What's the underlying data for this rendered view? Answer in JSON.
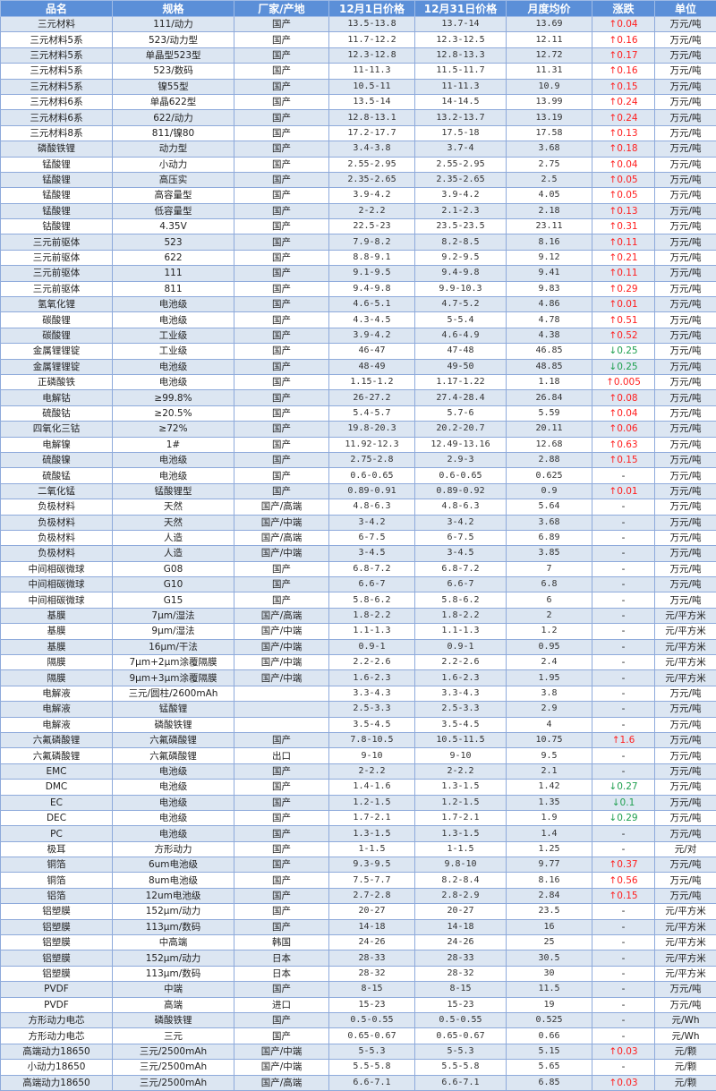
{
  "colors": {
    "header_bg": "#5b8fd8",
    "stripe": "#dce6f2",
    "up": "#ff2020",
    "down": "#20a050",
    "border": "#8eaadb"
  },
  "headers": [
    "品名",
    "规格",
    "厂家/产地",
    "12月1日价格",
    "12月31日价格",
    "月度均价",
    "涨跌",
    "单位"
  ],
  "rows": [
    [
      "三元材料",
      "111/动力",
      "国产",
      "13.5-13.8",
      "13.7-14",
      "13.69",
      "↑0.04",
      "万元/吨"
    ],
    [
      "三元材料5系",
      "523/动力型",
      "国产",
      "11.7-12.2",
      "12.3-12.5",
      "12.11",
      "↑0.16",
      "万元/吨"
    ],
    [
      "三元材料5系",
      "单晶型523型",
      "国产",
      "12.3-12.8",
      "12.8-13.3",
      "12.72",
      "↑0.17",
      "万元/吨"
    ],
    [
      "三元材料5系",
      "523/数码",
      "国产",
      "11-11.3",
      "11.5-11.7",
      "11.31",
      "↑0.16",
      "万元/吨"
    ],
    [
      "三元材料5系",
      "镍55型",
      "国产",
      "10.5-11",
      "11-11.3",
      "10.9",
      "↑0.15",
      "万元/吨"
    ],
    [
      "三元材料6系",
      "单晶622型",
      "国产",
      "13.5-14",
      "14-14.5",
      "13.99",
      "↑0.24",
      "万元/吨"
    ],
    [
      "三元材料6系",
      "622/动力",
      "国产",
      "12.8-13.1",
      "13.2-13.7",
      "13.19",
      "↑0.24",
      "万元/吨"
    ],
    [
      "三元材料8系",
      "811/镍80",
      "国产",
      "17.2-17.7",
      "17.5-18",
      "17.58",
      "↑0.13",
      "万元/吨"
    ],
    [
      "磷酸铁锂",
      "动力型",
      "国产",
      "3.4-3.8",
      "3.7-4",
      "3.68",
      "↑0.18",
      "万元/吨"
    ],
    [
      "锰酸锂",
      "小动力",
      "国产",
      "2.55-2.95",
      "2.55-2.95",
      "2.75",
      "↑0.04",
      "万元/吨"
    ],
    [
      "锰酸锂",
      "高压实",
      "国产",
      "2.35-2.65",
      "2.35-2.65",
      "2.5",
      "↑0.05",
      "万元/吨"
    ],
    [
      "锰酸锂",
      "高容量型",
      "国产",
      "3.9-4.2",
      "3.9-4.2",
      "4.05",
      "↑0.05",
      "万元/吨"
    ],
    [
      "锰酸锂",
      "低容量型",
      "国产",
      "2-2.2",
      "2.1-2.3",
      "2.18",
      "↑0.13",
      "万元/吨"
    ],
    [
      "钴酸锂",
      "4.35V",
      "国产",
      "22.5-23",
      "23.5-23.5",
      "23.11",
      "↑0.31",
      "万元/吨"
    ],
    [
      "三元前驱体",
      "523",
      "国产",
      "7.9-8.2",
      "8.2-8.5",
      "8.16",
      "↑0.11",
      "万元/吨"
    ],
    [
      "三元前驱体",
      "622",
      "国产",
      "8.8-9.1",
      "9.2-9.5",
      "9.12",
      "↑0.21",
      "万元/吨"
    ],
    [
      "三元前驱体",
      "111",
      "国产",
      "9.1-9.5",
      "9.4-9.8",
      "9.41",
      "↑0.11",
      "万元/吨"
    ],
    [
      "三元前驱体",
      "811",
      "国产",
      "9.4-9.8",
      "9.9-10.3",
      "9.83",
      "↑0.29",
      "万元/吨"
    ],
    [
      "氢氧化锂",
      "电池级",
      "国产",
      "4.6-5.1",
      "4.7-5.2",
      "4.86",
      "↑0.01",
      "万元/吨"
    ],
    [
      "碳酸锂",
      "电池级",
      "国产",
      "4.3-4.5",
      "5-5.4",
      "4.78",
      "↑0.51",
      "万元/吨"
    ],
    [
      "碳酸锂",
      "工业级",
      "国产",
      "3.9-4.2",
      "4.6-4.9",
      "4.38",
      "↑0.52",
      "万元/吨"
    ],
    [
      "金属锂锂锭",
      "工业级",
      "国产",
      "46-47",
      "47-48",
      "46.85",
      "↓0.25",
      "万元/吨"
    ],
    [
      "金属锂锂锭",
      "电池级",
      "国产",
      "48-49",
      "49-50",
      "48.85",
      "↓0.25",
      "万元/吨"
    ],
    [
      "正磷酸铁",
      "电池级",
      "国产",
      "1.15-1.2",
      "1.17-1.22",
      "1.18",
      "↑0.005",
      "万元/吨"
    ],
    [
      "电解钴",
      "≥99.8%",
      "国产",
      "26-27.2",
      "27.4-28.4",
      "26.84",
      "↑0.08",
      "万元/吨"
    ],
    [
      "硫酸钴",
      "≥20.5%",
      "国产",
      "5.4-5.7",
      "5.7-6",
      "5.59",
      "↑0.04",
      "万元/吨"
    ],
    [
      "四氧化三钴",
      "≥72%",
      "国产",
      "19.8-20.3",
      "20.2-20.7",
      "20.11",
      "↑0.06",
      "万元/吨"
    ],
    [
      "电解镍",
      "1#",
      "国产",
      "11.92-12.3",
      "12.49-13.16",
      "12.68",
      "↑0.63",
      "万元/吨"
    ],
    [
      "硫酸镍",
      "电池级",
      "国产",
      "2.75-2.8",
      "2.9-3",
      "2.88",
      "↑0.15",
      "万元/吨"
    ],
    [
      "硫酸锰",
      "电池级",
      "国产",
      "0.6-0.65",
      "0.6-0.65",
      "0.625",
      "-",
      "万元/吨"
    ],
    [
      "二氧化锰",
      "锰酸锂型",
      "国产",
      "0.89-0.91",
      "0.89-0.92",
      "0.9",
      "↑0.01",
      "万元/吨"
    ],
    [
      "负极材料",
      "天然",
      "国产/高端",
      "4.8-6.3",
      "4.8-6.3",
      "5.64",
      "-",
      "万元/吨"
    ],
    [
      "负极材料",
      "天然",
      "国产/中端",
      "3-4.2",
      "3-4.2",
      "3.68",
      "-",
      "万元/吨"
    ],
    [
      "负极材料",
      "人造",
      "国产/高端",
      "6-7.5",
      "6-7.5",
      "6.89",
      "-",
      "万元/吨"
    ],
    [
      "负极材料",
      "人造",
      "国产/中端",
      "3-4.5",
      "3-4.5",
      "3.85",
      "-",
      "万元/吨"
    ],
    [
      "中间相碳微球",
      "G08",
      "国产",
      "6.8-7.2",
      "6.8-7.2",
      "7",
      "-",
      "万元/吨"
    ],
    [
      "中间相碳微球",
      "G10",
      "国产",
      "6.6-7",
      "6.6-7",
      "6.8",
      "-",
      "万元/吨"
    ],
    [
      "中间相碳微球",
      "G15",
      "国产",
      "5.8-6.2",
      "5.8-6.2",
      "6",
      "-",
      "万元/吨"
    ],
    [
      "基膜",
      "7μm/湿法",
      "国产/高端",
      "1.8-2.2",
      "1.8-2.2",
      "2",
      "-",
      "元/平方米"
    ],
    [
      "基膜",
      "9μm/湿法",
      "国产/中端",
      "1.1-1.3",
      "1.1-1.3",
      "1.2",
      "-",
      "元/平方米"
    ],
    [
      "基膜",
      "16μm/干法",
      "国产/中端",
      "0.9-1",
      "0.9-1",
      "0.95",
      "-",
      "元/平方米"
    ],
    [
      "隔膜",
      "7μm+2μm涂覆隔膜",
      "国产/中端",
      "2.2-2.6",
      "2.2-2.6",
      "2.4",
      "-",
      "元/平方米"
    ],
    [
      "隔膜",
      "9μm+3μm涂覆隔膜",
      "国产/中端",
      "1.6-2.3",
      "1.6-2.3",
      "1.95",
      "-",
      "元/平方米"
    ],
    [
      "电解液",
      "三元/圆柱/2600mAh",
      "",
      "3.3-4.3",
      "3.3-4.3",
      "3.8",
      "-",
      "万元/吨"
    ],
    [
      "电解液",
      "锰酸锂",
      "",
      "2.5-3.3",
      "2.5-3.3",
      "2.9",
      "-",
      "万元/吨"
    ],
    [
      "电解液",
      "磷酸铁锂",
      "",
      "3.5-4.5",
      "3.5-4.5",
      "4",
      "-",
      "万元/吨"
    ],
    [
      "六氟磷酸锂",
      "六氟磷酸锂",
      "国产",
      "7.8-10.5",
      "10.5-11.5",
      "10.75",
      "↑1.6",
      "万元/吨"
    ],
    [
      "六氟磷酸锂",
      "六氟磷酸锂",
      "出口",
      "9-10",
      "9-10",
      "9.5",
      "-",
      "万元/吨"
    ],
    [
      "EMC",
      "电池级",
      "国产",
      "2-2.2",
      "2-2.2",
      "2.1",
      "-",
      "万元/吨"
    ],
    [
      "DMC",
      "电池级",
      "国产",
      "1.4-1.6",
      "1.3-1.5",
      "1.42",
      "↓0.27",
      "万元/吨"
    ],
    [
      "EC",
      "电池级",
      "国产",
      "1.2-1.5",
      "1.2-1.5",
      "1.35",
      "↓0.1",
      "万元/吨"
    ],
    [
      "DEC",
      "电池级",
      "国产",
      "1.7-2.1",
      "1.7-2.1",
      "1.9",
      "↓0.29",
      "万元/吨"
    ],
    [
      "PC",
      "电池级",
      "国产",
      "1.3-1.5",
      "1.3-1.5",
      "1.4",
      "-",
      "万元/吨"
    ],
    [
      "极耳",
      "方形动力",
      "国产",
      "1-1.5",
      "1-1.5",
      "1.25",
      "-",
      "元/对"
    ],
    [
      "铜箔",
      "6um电池级",
      "国产",
      "9.3-9.5",
      "9.8-10",
      "9.77",
      "↑0.37",
      "万元/吨"
    ],
    [
      "铜箔",
      "8um电池级",
      "国产",
      "7.5-7.7",
      "8.2-8.4",
      "8.16",
      "↑0.56",
      "万元/吨"
    ],
    [
      "铝箔",
      "12um电池级",
      "国产",
      "2.7-2.8",
      "2.8-2.9",
      "2.84",
      "↑0.15",
      "万元/吨"
    ],
    [
      "铝塑膜",
      "152μm/动力",
      "国产",
      "20-27",
      "20-27",
      "23.5",
      "-",
      "元/平方米"
    ],
    [
      "铝塑膜",
      "113μm/数码",
      "国产",
      "14-18",
      "14-18",
      "16",
      "-",
      "元/平方米"
    ],
    [
      "铝塑膜",
      "中高端",
      "韩国",
      "24-26",
      "24-26",
      "25",
      "-",
      "元/平方米"
    ],
    [
      "铝塑膜",
      "152μm/动力",
      "日本",
      "28-33",
      "28-33",
      "30.5",
      "-",
      "元/平方米"
    ],
    [
      "铝塑膜",
      "113μm/数码",
      "日本",
      "28-32",
      "28-32",
      "30",
      "-",
      "元/平方米"
    ],
    [
      "PVDF",
      "中端",
      "国产",
      "8-15",
      "8-15",
      "11.5",
      "-",
      "万元/吨"
    ],
    [
      "PVDF",
      "高端",
      "进口",
      "15-23",
      "15-23",
      "19",
      "-",
      "万元/吨"
    ],
    [
      "方形动力电芯",
      "磷酸铁锂",
      "国产",
      "0.5-0.55",
      "0.5-0.55",
      "0.525",
      "-",
      "元/Wh"
    ],
    [
      "方形动力电芯",
      "三元",
      "国产",
      "0.65-0.67",
      "0.65-0.67",
      "0.66",
      "-",
      "元/Wh"
    ],
    [
      "高端动力18650",
      "三元/2500mAh",
      "国产/中端",
      "5-5.3",
      "5-5.3",
      "5.15",
      "↑0.03",
      "元/颗"
    ],
    [
      "小动力18650",
      "三元/2500mAh",
      "国产/中端",
      "5.5-5.8",
      "5.5-5.8",
      "5.65",
      "-",
      "元/颗"
    ],
    [
      "高端动力18650",
      "三元/2500mAh",
      "国产/高端",
      "6.6-7.1",
      "6.6-7.1",
      "6.85",
      "↑0.03",
      "元/颗"
    ]
  ]
}
